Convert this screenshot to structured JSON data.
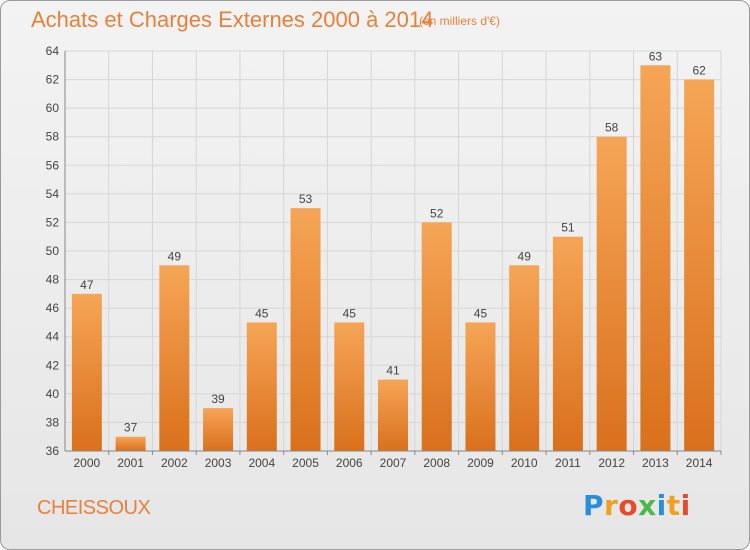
{
  "title": "Achats et Charges Externes 2000 à 2014",
  "unit_note": "(en milliers d'€)",
  "commune": "CHEISSOUX",
  "logo": {
    "letters": [
      "P",
      "r",
      "o",
      "x",
      "i",
      "t",
      "i"
    ],
    "colors": [
      "#2a8fd8",
      "#f0a020",
      "#e84a2a",
      "#4cb848",
      "#2a8fd8",
      "#f0a020",
      "#e84a2a"
    ]
  },
  "colors": {
    "bar_top": "#f5a556",
    "bar_bottom": "#d9701c",
    "grid": "#d6d6d6",
    "axis": "#888888",
    "text": "#444444",
    "accent": "#e8803a"
  },
  "chart_data": {
    "type": "bar",
    "title": "Achats et Charges Externes 2000 à 2014",
    "xlabel": "",
    "ylabel": "",
    "categories": [
      "2000",
      "2001",
      "2002",
      "2003",
      "2004",
      "2005",
      "2006",
      "2007",
      "2008",
      "2009",
      "2010",
      "2011",
      "2012",
      "2013",
      "2014"
    ],
    "values": [
      47,
      37,
      49,
      39,
      45,
      53,
      45,
      41,
      52,
      45,
      49,
      51,
      58,
      63,
      62
    ],
    "ylim": [
      36,
      64
    ],
    "yticks": [
      36,
      38,
      40,
      42,
      44,
      46,
      48,
      50,
      52,
      54,
      56,
      58,
      60,
      62,
      64
    ],
    "grid": true,
    "data_labels": true
  }
}
